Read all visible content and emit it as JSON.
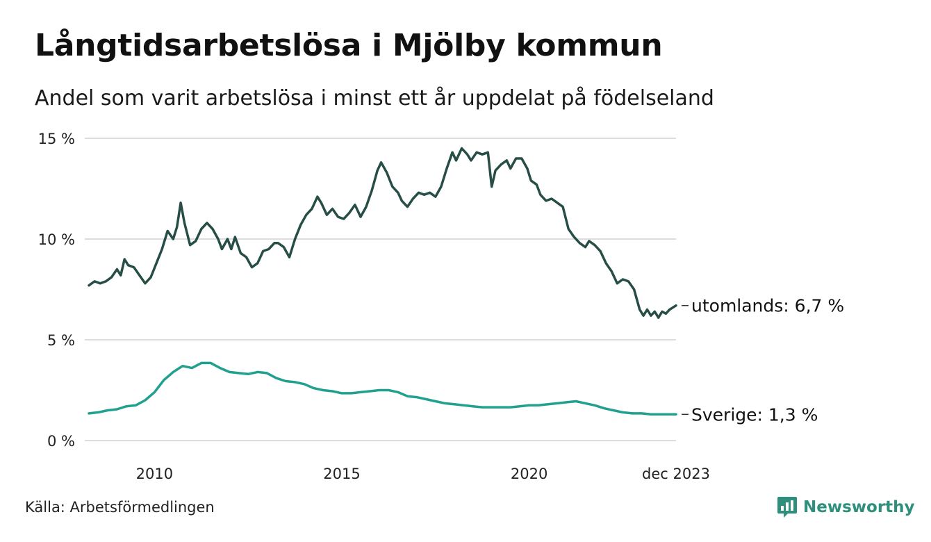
{
  "header": {
    "title": "Långtidsarbetslösa i Mjölby kommun",
    "subtitle": "Andel som varit arbetslösa i minst ett år uppdelat på födelseland"
  },
  "footer": {
    "source": "Källa: Arbetsförmedlingen",
    "brand": "Newsworthy"
  },
  "colors": {
    "utomlands": "#264d46",
    "sverige": "#21a08f",
    "grid": "#dddddd",
    "brand": "#2e8f7c"
  },
  "chart_data": {
    "type": "line",
    "title": "Långtidsarbetslösa i Mjölby kommun",
    "subtitle": "Andel som varit arbetslösa i minst ett år uppdelat på födelseland",
    "xlabel": "",
    "ylabel": "",
    "ylim": [
      0,
      15
    ],
    "yticks": [
      0,
      5,
      10,
      15
    ],
    "ytick_labels": [
      "0 %",
      "5 %",
      "10 %",
      "15 %"
    ],
    "xlim": [
      2008.25,
      2023.92
    ],
    "xticks": [
      2010,
      2015,
      2020,
      2023.92
    ],
    "xtick_labels": [
      "2010",
      "2015",
      "2020",
      "dec 2023"
    ],
    "grid": true,
    "series": [
      {
        "name": "utomlands",
        "end_label": "utomlands: 6,7 %",
        "color": "#264d46",
        "points": [
          [
            2008.25,
            7.7
          ],
          [
            2008.4,
            7.9
          ],
          [
            2008.55,
            7.8
          ],
          [
            2008.7,
            7.9
          ],
          [
            2008.85,
            8.1
          ],
          [
            2009.0,
            8.5
          ],
          [
            2009.1,
            8.2
          ],
          [
            2009.2,
            9.0
          ],
          [
            2009.3,
            8.7
          ],
          [
            2009.45,
            8.6
          ],
          [
            2009.6,
            8.2
          ],
          [
            2009.75,
            7.8
          ],
          [
            2009.9,
            8.1
          ],
          [
            2010.05,
            8.8
          ],
          [
            2010.2,
            9.5
          ],
          [
            2010.35,
            10.4
          ],
          [
            2010.5,
            10.0
          ],
          [
            2010.6,
            10.6
          ],
          [
            2010.7,
            11.8
          ],
          [
            2010.8,
            10.8
          ],
          [
            2010.95,
            9.7
          ],
          [
            2011.1,
            9.9
          ],
          [
            2011.25,
            10.5
          ],
          [
            2011.4,
            10.8
          ],
          [
            2011.55,
            10.5
          ],
          [
            2011.7,
            10.0
          ],
          [
            2011.8,
            9.5
          ],
          [
            2011.95,
            10.0
          ],
          [
            2012.05,
            9.5
          ],
          [
            2012.15,
            10.1
          ],
          [
            2012.3,
            9.3
          ],
          [
            2012.45,
            9.1
          ],
          [
            2012.6,
            8.6
          ],
          [
            2012.75,
            8.8
          ],
          [
            2012.9,
            9.4
          ],
          [
            2013.05,
            9.5
          ],
          [
            2013.2,
            9.8
          ],
          [
            2013.3,
            9.8
          ],
          [
            2013.45,
            9.6
          ],
          [
            2013.6,
            9.1
          ],
          [
            2013.75,
            10.0
          ],
          [
            2013.9,
            10.7
          ],
          [
            2014.05,
            11.2
          ],
          [
            2014.2,
            11.5
          ],
          [
            2014.35,
            12.1
          ],
          [
            2014.45,
            11.8
          ],
          [
            2014.6,
            11.2
          ],
          [
            2014.75,
            11.5
          ],
          [
            2014.9,
            11.1
          ],
          [
            2015.05,
            11.0
          ],
          [
            2015.2,
            11.3
          ],
          [
            2015.35,
            11.7
          ],
          [
            2015.5,
            11.1
          ],
          [
            2015.65,
            11.6
          ],
          [
            2015.8,
            12.4
          ],
          [
            2015.95,
            13.4
          ],
          [
            2016.05,
            13.8
          ],
          [
            2016.2,
            13.3
          ],
          [
            2016.35,
            12.6
          ],
          [
            2016.5,
            12.3
          ],
          [
            2016.6,
            11.9
          ],
          [
            2016.75,
            11.6
          ],
          [
            2016.9,
            12.0
          ],
          [
            2017.05,
            12.3
          ],
          [
            2017.2,
            12.2
          ],
          [
            2017.35,
            12.3
          ],
          [
            2017.5,
            12.1
          ],
          [
            2017.65,
            12.6
          ],
          [
            2017.8,
            13.5
          ],
          [
            2017.95,
            14.3
          ],
          [
            2018.05,
            13.9
          ],
          [
            2018.2,
            14.5
          ],
          [
            2018.35,
            14.2
          ],
          [
            2018.45,
            13.9
          ],
          [
            2018.6,
            14.3
          ],
          [
            2018.75,
            14.2
          ],
          [
            2018.9,
            14.3
          ],
          [
            2019.0,
            12.6
          ],
          [
            2019.1,
            13.4
          ],
          [
            2019.25,
            13.7
          ],
          [
            2019.4,
            13.9
          ],
          [
            2019.5,
            13.5
          ],
          [
            2019.65,
            14.0
          ],
          [
            2019.8,
            14.0
          ],
          [
            2019.95,
            13.5
          ],
          [
            2020.05,
            12.9
          ],
          [
            2020.2,
            12.7
          ],
          [
            2020.3,
            12.2
          ],
          [
            2020.45,
            11.9
          ],
          [
            2020.6,
            12.0
          ],
          [
            2020.75,
            11.8
          ],
          [
            2020.9,
            11.6
          ],
          [
            2021.05,
            10.5
          ],
          [
            2021.2,
            10.1
          ],
          [
            2021.35,
            9.8
          ],
          [
            2021.5,
            9.6
          ],
          [
            2021.6,
            9.9
          ],
          [
            2021.75,
            9.7
          ],
          [
            2021.9,
            9.4
          ],
          [
            2022.05,
            8.8
          ],
          [
            2022.2,
            8.4
          ],
          [
            2022.35,
            7.8
          ],
          [
            2022.5,
            8.0
          ],
          [
            2022.65,
            7.9
          ],
          [
            2022.8,
            7.5
          ],
          [
            2022.95,
            6.5
          ],
          [
            2023.05,
            6.2
          ],
          [
            2023.15,
            6.5
          ],
          [
            2023.25,
            6.2
          ],
          [
            2023.35,
            6.4
          ],
          [
            2023.45,
            6.1
          ],
          [
            2023.55,
            6.4
          ],
          [
            2023.65,
            6.3
          ],
          [
            2023.75,
            6.5
          ],
          [
            2023.92,
            6.7
          ]
        ]
      },
      {
        "name": "Sverige",
        "end_label": "Sverige: 1,3 %",
        "color": "#21a08f",
        "points": [
          [
            2008.25,
            1.35
          ],
          [
            2008.5,
            1.4
          ],
          [
            2008.75,
            1.5
          ],
          [
            2009.0,
            1.55
          ],
          [
            2009.25,
            1.7
          ],
          [
            2009.5,
            1.75
          ],
          [
            2009.75,
            2.0
          ],
          [
            2010.0,
            2.4
          ],
          [
            2010.25,
            3.0
          ],
          [
            2010.5,
            3.4
          ],
          [
            2010.75,
            3.7
          ],
          [
            2011.0,
            3.6
          ],
          [
            2011.25,
            3.85
          ],
          [
            2011.5,
            3.85
          ],
          [
            2011.75,
            3.6
          ],
          [
            2012.0,
            3.4
          ],
          [
            2012.25,
            3.35
          ],
          [
            2012.5,
            3.3
          ],
          [
            2012.75,
            3.4
          ],
          [
            2013.0,
            3.35
          ],
          [
            2013.25,
            3.1
          ],
          [
            2013.5,
            2.95
          ],
          [
            2013.75,
            2.9
          ],
          [
            2014.0,
            2.8
          ],
          [
            2014.25,
            2.6
          ],
          [
            2014.5,
            2.5
          ],
          [
            2014.75,
            2.45
          ],
          [
            2015.0,
            2.35
          ],
          [
            2015.25,
            2.35
          ],
          [
            2015.5,
            2.4
          ],
          [
            2015.75,
            2.45
          ],
          [
            2016.0,
            2.5
          ],
          [
            2016.25,
            2.5
          ],
          [
            2016.5,
            2.4
          ],
          [
            2016.75,
            2.2
          ],
          [
            2017.0,
            2.15
          ],
          [
            2017.25,
            2.05
          ],
          [
            2017.5,
            1.95
          ],
          [
            2017.75,
            1.85
          ],
          [
            2018.0,
            1.8
          ],
          [
            2018.25,
            1.75
          ],
          [
            2018.5,
            1.7
          ],
          [
            2018.75,
            1.65
          ],
          [
            2019.0,
            1.65
          ],
          [
            2019.25,
            1.65
          ],
          [
            2019.5,
            1.65
          ],
          [
            2019.75,
            1.7
          ],
          [
            2020.0,
            1.75
          ],
          [
            2020.25,
            1.75
          ],
          [
            2020.5,
            1.8
          ],
          [
            2020.75,
            1.85
          ],
          [
            2021.0,
            1.9
          ],
          [
            2021.25,
            1.95
          ],
          [
            2021.5,
            1.85
          ],
          [
            2021.75,
            1.75
          ],
          [
            2022.0,
            1.6
          ],
          [
            2022.25,
            1.5
          ],
          [
            2022.5,
            1.4
          ],
          [
            2022.75,
            1.35
          ],
          [
            2023.0,
            1.35
          ],
          [
            2023.25,
            1.3
          ],
          [
            2023.5,
            1.3
          ],
          [
            2023.75,
            1.3
          ],
          [
            2023.92,
            1.3
          ]
        ]
      }
    ]
  }
}
